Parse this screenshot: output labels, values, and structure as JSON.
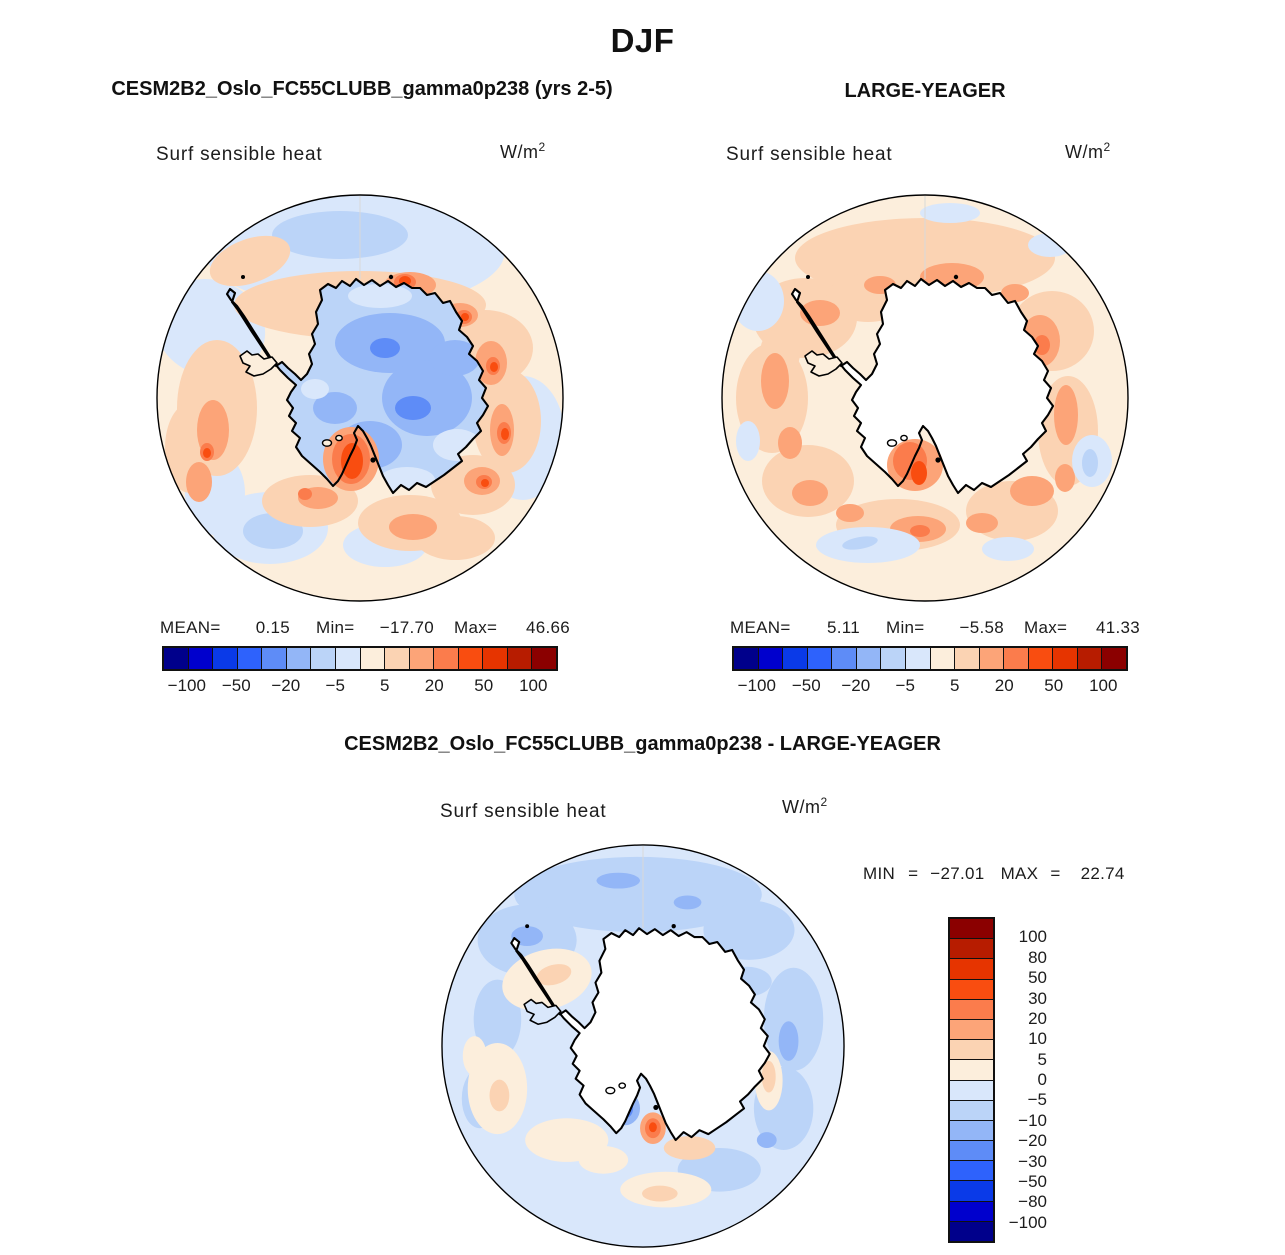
{
  "page": {
    "title": "DJF"
  },
  "palette_neg_to_pos": [
    "#00008B",
    "#0000CD",
    "#0A3AE8",
    "#2E62FC",
    "#5E8CF7",
    "#93B6F7",
    "#BBD4F8",
    "#D9E7FB",
    "#FCEEDC",
    "#FBD3B3",
    "#FCA478",
    "#FB7C4C",
    "#F94D10",
    "#E63400",
    "#B71C00",
    "#8B0000"
  ],
  "panels": [
    {
      "title": "CESM2B2_Oslo_FC55CLUBB_gamma0p238 (yrs 2-5)",
      "field_label": "Surf sensible heat",
      "units_base": "W/m",
      "units_exp": "2",
      "stats": {
        "mean_label": "MEAN=",
        "mean": "0.15",
        "min_label": "Min=",
        "min": "−17.70",
        "max_label": "Max=",
        "max": "46.66"
      },
      "colorbar_ticks": [
        "−100",
        "−50",
        "−20",
        "−5",
        "5",
        "20",
        "50",
        "100"
      ]
    },
    {
      "title": "LARGE-YEAGER",
      "field_label": "Surf sensible heat",
      "units_base": "W/m",
      "units_exp": "2",
      "stats": {
        "mean_label": "MEAN=",
        "mean": "5.11",
        "min_label": "Min=",
        "min": "−5.58",
        "max_label": "Max=",
        "max": "41.33"
      },
      "colorbar_ticks": [
        "−100",
        "−50",
        "−20",
        "−5",
        "5",
        "20",
        "50",
        "100"
      ]
    },
    {
      "title": "CESM2B2_Oslo_FC55CLUBB_gamma0p238 - LARGE-YEAGER",
      "field_label": "Surf sensible heat",
      "units_base": "W/m",
      "units_exp": "2",
      "minmax": {
        "min_label": "MIN",
        "eq1": "=",
        "min": "−27.01",
        "max_label": "MAX",
        "eq2": "=",
        "max": "22.74"
      },
      "colorbar_ticks": [
        "100",
        "80",
        "50",
        "30",
        "20",
        "10",
        "5",
        "0",
        "−5",
        "−10",
        "−20",
        "−30",
        "−50",
        "−80",
        "−100"
      ]
    }
  ],
  "chart_data": [
    {
      "type": "heatmap",
      "subtype": "filled-contour-polar-map",
      "region": "Antarctica / Southern Ocean (south polar stereographic)",
      "season": "DJF",
      "title": "CESM2B2_Oslo_FC55CLUBB_gamma0p238 (yrs 2-5)",
      "field": "Surf sensible heat",
      "units": "W/m^2",
      "contour_levels": [
        -100,
        -80,
        -50,
        -30,
        -20,
        -10,
        -5,
        0,
        5,
        10,
        20,
        30,
        50,
        80,
        100
      ],
      "stats": {
        "mean": 0.15,
        "min": -17.7,
        "max": 46.66
      },
      "legend_position": "bottom-horizontal"
    },
    {
      "type": "heatmap",
      "subtype": "filled-contour-polar-map",
      "region": "Antarctica / Southern Ocean (south polar stereographic)",
      "season": "DJF",
      "title": "LARGE-YEAGER",
      "field": "Surf sensible heat",
      "units": "W/m^2",
      "contour_levels": [
        -100,
        -80,
        -50,
        -30,
        -20,
        -10,
        -5,
        0,
        5,
        10,
        20,
        30,
        50,
        80,
        100
      ],
      "stats": {
        "mean": 5.11,
        "min": -5.58,
        "max": 41.33
      },
      "legend_position": "bottom-horizontal"
    },
    {
      "type": "heatmap",
      "subtype": "filled-contour-polar-map-difference",
      "region": "Antarctica / Southern Ocean (south polar stereographic)",
      "season": "DJF",
      "title": "CESM2B2_Oslo_FC55CLUBB_gamma0p238 - LARGE-YEAGER",
      "field": "Surf sensible heat",
      "units": "W/m^2",
      "contour_levels": [
        -100,
        -80,
        -50,
        -30,
        -20,
        -10,
        -5,
        0,
        5,
        10,
        20,
        30,
        50,
        80,
        100
      ],
      "stats": {
        "min": -27.01,
        "max": 22.74
      },
      "legend_position": "right-vertical"
    }
  ]
}
